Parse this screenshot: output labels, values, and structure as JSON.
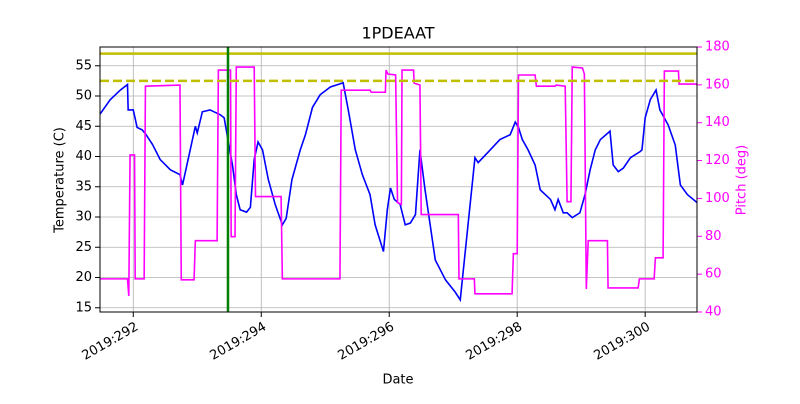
{
  "chart_data": {
    "type": "line",
    "title": "1PDEAAT",
    "xlabel": "Date",
    "ylabel": "Temperature (C)",
    "y2label": "Pitch (deg)",
    "xlim": [
      291.48,
      300.81
    ],
    "ylim": [
      14.3,
      58.1
    ],
    "y2lim": [
      40,
      180
    ],
    "xticks": [
      {
        "value": 292,
        "label": "2019:292"
      },
      {
        "value": 294,
        "label": "2019:294"
      },
      {
        "value": 296,
        "label": "2019:296"
      },
      {
        "value": 298,
        "label": "2019:298"
      },
      {
        "value": 300,
        "label": "2019:300"
      }
    ],
    "yticks": [
      15,
      20,
      25,
      30,
      35,
      40,
      45,
      50,
      55
    ],
    "y2ticks": [
      40,
      60,
      80,
      100,
      120,
      140,
      160,
      180
    ],
    "grid": true,
    "y2color": "#ff00ff",
    "hlines": [
      {
        "value": 57,
        "color": "#bfbf00",
        "dashed": false
      },
      {
        "value": 52.5,
        "color": "#bfbf00",
        "dashed": true
      }
    ],
    "vlines": [
      {
        "value": 293.48,
        "color": "#008000"
      }
    ],
    "series": [
      {
        "name": "Temperature",
        "color": "#0000ff",
        "axis": "y",
        "x": [
          291.48,
          291.64,
          291.8,
          291.91,
          291.92,
          292.0,
          292.06,
          292.14,
          292.2,
          292.3,
          292.42,
          292.58,
          292.73,
          292.77,
          292.89,
          292.97,
          293.0,
          293.08,
          293.2,
          293.36,
          293.42,
          293.48,
          293.55,
          293.61,
          293.67,
          293.77,
          293.83,
          293.89,
          293.95,
          294.02,
          294.11,
          294.22,
          294.33,
          294.39,
          294.48,
          294.61,
          294.69,
          294.72,
          294.8,
          294.92,
          295.08,
          295.23,
          295.28,
          295.36,
          295.47,
          295.58,
          295.7,
          295.78,
          295.91,
          295.97,
          296.02,
          296.08,
          296.17,
          296.25,
          296.33,
          296.41,
          296.48,
          296.56,
          296.64,
          296.72,
          296.88,
          297.03,
          297.11,
          297.34,
          297.39,
          297.58,
          297.73,
          297.89,
          297.97,
          298.02,
          298.08,
          298.17,
          298.28,
          298.36,
          298.52,
          298.59,
          298.64,
          298.72,
          298.78,
          298.86,
          298.98,
          299.06,
          299.14,
          299.22,
          299.3,
          299.42,
          299.45,
          299.5,
          299.58,
          299.66,
          299.77,
          299.92,
          299.95,
          300.0,
          300.08,
          300.17,
          300.23,
          300.36,
          300.47,
          300.55,
          300.66,
          300.81
        ],
        "values": [
          47,
          49.4,
          51,
          51.9,
          47.7,
          47.7,
          44.8,
          44.4,
          43.6,
          42,
          39.5,
          37.8,
          37,
          35.3,
          41.1,
          45,
          43.9,
          47.4,
          47.7,
          46.9,
          46.4,
          42.8,
          38.6,
          33.7,
          31.2,
          30.8,
          31.6,
          39.5,
          42.4,
          41.1,
          36.2,
          32,
          28.7,
          29.8,
          36.2,
          41.1,
          43.6,
          44.8,
          48.1,
          50.2,
          51.5,
          52,
          52.2,
          47.7,
          41.1,
          37,
          33.7,
          28.7,
          24.3,
          31.2,
          34.8,
          32.9,
          32.1,
          28.7,
          29,
          30.4,
          41.1,
          34.5,
          28.7,
          22.9,
          19.6,
          17.6,
          16.3,
          39.8,
          39,
          41.1,
          42.8,
          43.6,
          45.7,
          44.8,
          42.8,
          41.1,
          38.6,
          34.5,
          32.9,
          31.2,
          32.9,
          30.7,
          30.7,
          29.9,
          30.7,
          33.7,
          37.8,
          41.1,
          42.8,
          43.9,
          44.2,
          38.6,
          37.5,
          38.1,
          39.8,
          40.8,
          41.1,
          46.4,
          49.4,
          51,
          47.7,
          45.2,
          41.9,
          35.3,
          33.7,
          32.4
        ]
      },
      {
        "name": "Pitch",
        "color": "#ff00ff",
        "axis": "y2",
        "x": [
          291.48,
          291.91,
          291.93,
          291.95,
          292.02,
          292.03,
          292.17,
          292.19,
          292.73,
          292.75,
          292.95,
          292.97,
          293.31,
          293.33,
          293.52,
          293.53,
          293.59,
          293.61,
          293.89,
          293.91,
          294.31,
          294.33,
          295.23,
          295.25,
          295.7,
          295.72,
          295.94,
          295.95,
          295.98,
          296.1,
          296.13,
          296.19,
          296.2,
          296.38,
          296.39,
          296.48,
          296.5,
          297.08,
          297.09,
          297.33,
          297.34,
          297.92,
          297.94,
          298.0,
          298.02,
          298.28,
          298.3,
          298.59,
          298.61,
          298.75,
          298.78,
          298.84,
          298.86,
          299.02,
          299.05,
          299.08,
          299.11,
          299.41,
          299.42,
          299.89,
          299.91,
          300.14,
          300.16,
          300.28,
          300.3,
          300.52,
          300.53,
          300.81
        ],
        "values": [
          57.5,
          57.5,
          48.5,
          123,
          123,
          57.5,
          57.5,
          159.3,
          159.9,
          57,
          57,
          77.7,
          77.7,
          167.8,
          167.8,
          79.8,
          79.8,
          169.4,
          169.4,
          101,
          101,
          57.5,
          57.5,
          157.2,
          157.2,
          156.1,
          156.1,
          167.8,
          165.7,
          165.2,
          97.8,
          96.8,
          167.8,
          167.8,
          160.9,
          159.9,
          91.5,
          91.5,
          57.5,
          57.5,
          49.6,
          49.6,
          70.8,
          70.8,
          165.2,
          165.2,
          159.3,
          159.3,
          159.9,
          159.3,
          98.3,
          98.3,
          169.4,
          168.9,
          165.7,
          52.2,
          77.7,
          77.7,
          52.7,
          52.7,
          57.5,
          57.5,
          68.6,
          68.6,
          167.3,
          167.3,
          160.4,
          160.4
        ]
      }
    ]
  }
}
